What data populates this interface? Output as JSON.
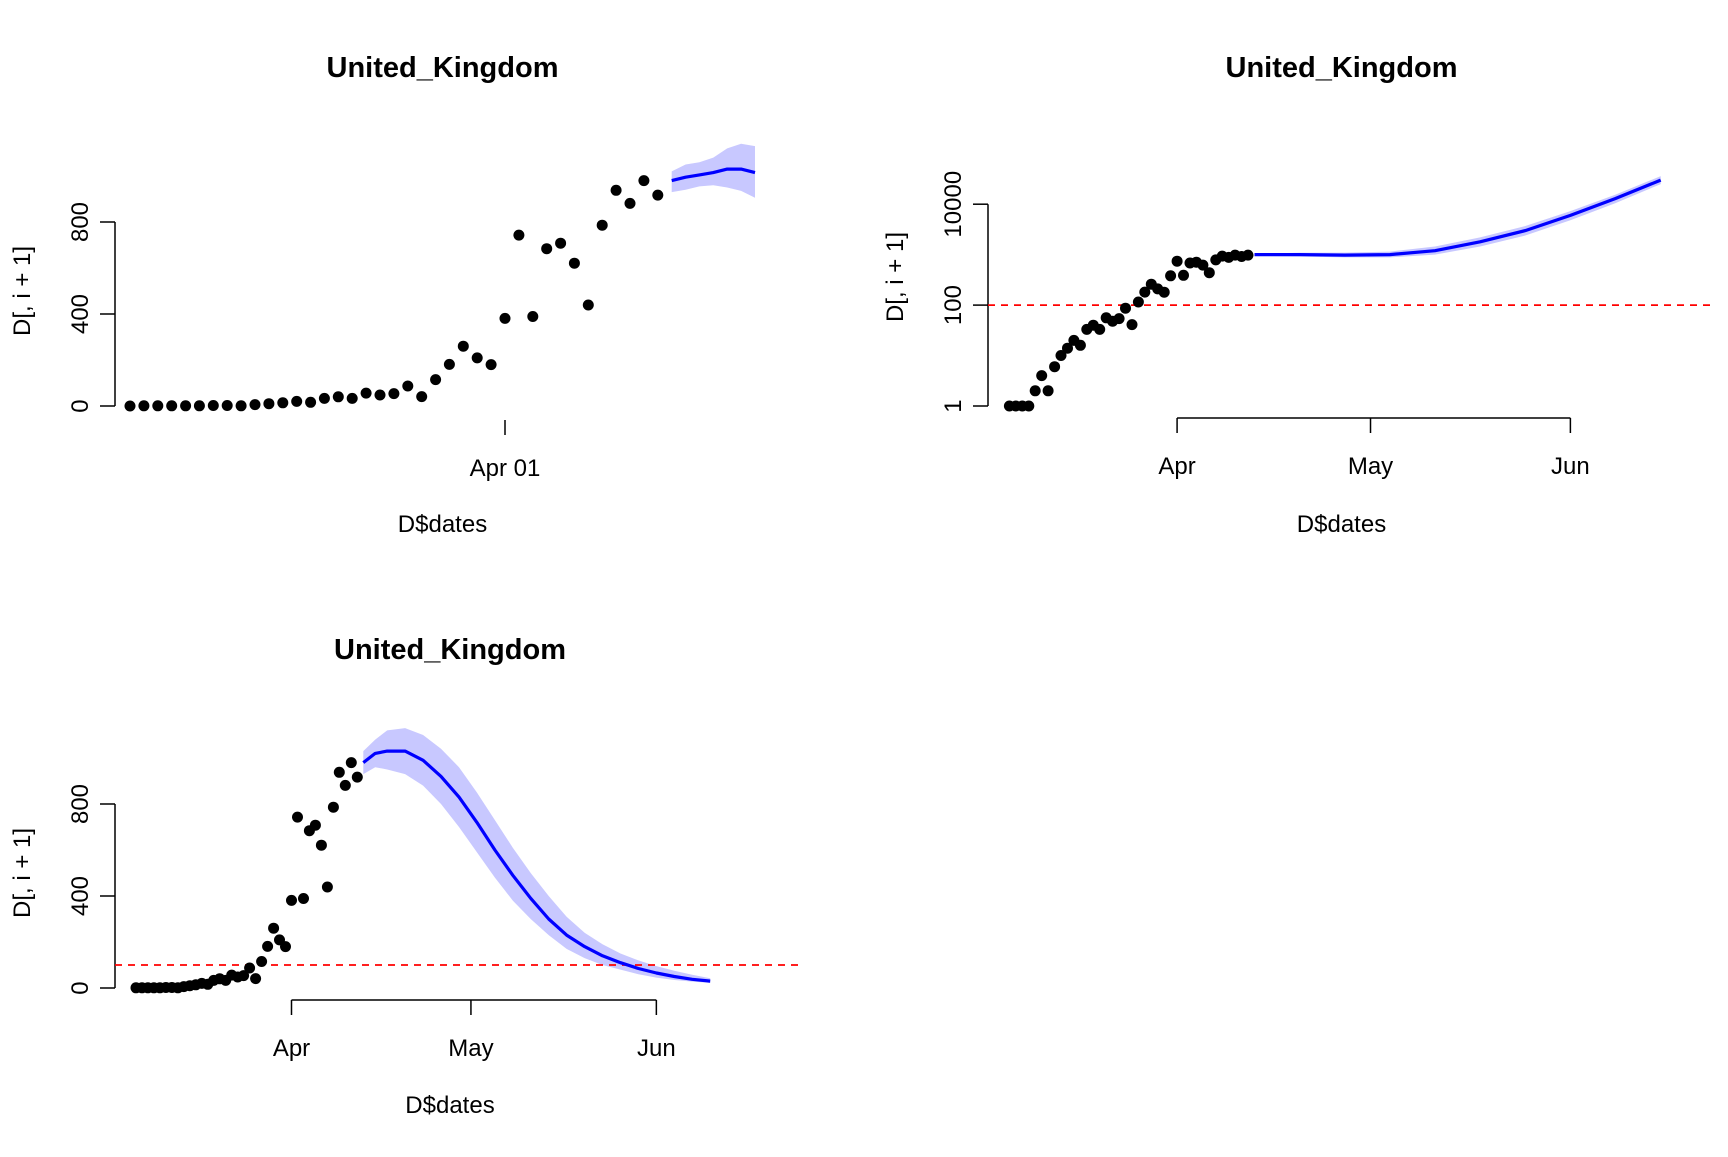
{
  "colors": {
    "points": "#000000",
    "fit": "#0000ff",
    "band": "#c8c8ff",
    "threshold": "#ff0000"
  },
  "chart_data": [
    {
      "id": "p1",
      "type": "scatter",
      "title": "United_Kingdom",
      "xlabel": "D$dates",
      "ylabel": "D[, i + 1]",
      "yscale": "linear",
      "xlim": [
        "2020-03-05",
        "2020-04-19"
      ],
      "ylim": [
        0,
        1000
      ],
      "xticks": [
        {
          "date": "2020-04-01",
          "label": "Apr 01"
        }
      ],
      "yticks": [
        {
          "value": 0,
          "label": "0"
        },
        {
          "value": 400,
          "label": "400"
        },
        {
          "value": 800,
          "label": "800"
        }
      ],
      "threshold": null,
      "series": [
        {
          "kind": "observed",
          "x": [
            "2020-03-05",
            "2020-03-06",
            "2020-03-07",
            "2020-03-08",
            "2020-03-09",
            "2020-03-10",
            "2020-03-11",
            "2020-03-12",
            "2020-03-13",
            "2020-03-14",
            "2020-03-15",
            "2020-03-16",
            "2020-03-17",
            "2020-03-18",
            "2020-03-19",
            "2020-03-20",
            "2020-03-21",
            "2020-03-22",
            "2020-03-23",
            "2020-03-24",
            "2020-03-25",
            "2020-03-26",
            "2020-03-27",
            "2020-03-28",
            "2020-03-29",
            "2020-03-30",
            "2020-03-31",
            "2020-04-01",
            "2020-04-02",
            "2020-04-03",
            "2020-04-04",
            "2020-04-05",
            "2020-04-06",
            "2020-04-07",
            "2020-04-08",
            "2020-04-09",
            "2020-04-10",
            "2020-04-11",
            "2020-04-12"
          ],
          "y": [
            0,
            1,
            1,
            1,
            1,
            1,
            2,
            2,
            1,
            6,
            10,
            14,
            20,
            16,
            33,
            40,
            33,
            56,
            48,
            54,
            87,
            41,
            115,
            181,
            260,
            209,
            180,
            381,
            743,
            389,
            684,
            708,
            621,
            439,
            786,
            938,
            881,
            980,
            917
          ]
        },
        {
          "kind": "fit",
          "x": [
            "2020-04-13",
            "2020-04-14",
            "2020-04-15",
            "2020-04-16",
            "2020-04-17",
            "2020-04-18",
            "2020-04-19"
          ],
          "y": [
            980,
            995,
            1005,
            1015,
            1030,
            1030,
            1015
          ]
        },
        {
          "kind": "band",
          "x": [
            "2020-04-13",
            "2020-04-14",
            "2020-04-15",
            "2020-04-16",
            "2020-04-17",
            "2020-04-18",
            "2020-04-19"
          ],
          "lower": [
            930,
            940,
            955,
            960,
            950,
            935,
            905
          ],
          "upper": [
            1020,
            1050,
            1060,
            1080,
            1120,
            1140,
            1130
          ]
        }
      ]
    },
    {
      "id": "p2",
      "type": "scatter",
      "title": "United_Kingdom",
      "xlabel": "D$dates",
      "ylabel": "D[, i + 1]",
      "yscale": "log",
      "xlim": [
        "2020-03-05",
        "2020-06-18"
      ],
      "ylim": [
        1,
        130000
      ],
      "xticks": [
        {
          "date": "2020-04-01",
          "label": "Apr"
        },
        {
          "date": "2020-05-01",
          "label": "May"
        },
        {
          "date": "2020-06-01",
          "label": "Jun"
        }
      ],
      "yticks": [
        {
          "value": 1,
          "label": "1"
        },
        {
          "value": 100,
          "label": "100"
        },
        {
          "value": 10000,
          "label": "10000"
        }
      ],
      "threshold": 100,
      "series": [
        {
          "kind": "observed",
          "x": [
            "2020-03-06",
            "2020-03-07",
            "2020-03-08",
            "2020-03-09",
            "2020-03-10",
            "2020-03-11",
            "2020-03-12",
            "2020-03-13",
            "2020-03-14",
            "2020-03-15",
            "2020-03-16",
            "2020-03-17",
            "2020-03-18",
            "2020-03-19",
            "2020-03-20",
            "2020-03-21",
            "2020-03-22",
            "2020-03-23",
            "2020-03-24",
            "2020-03-25",
            "2020-03-26",
            "2020-03-27",
            "2020-03-28",
            "2020-03-29",
            "2020-03-30",
            "2020-03-31",
            "2020-04-01",
            "2020-04-02",
            "2020-04-03",
            "2020-04-04",
            "2020-04-05",
            "2020-04-06",
            "2020-04-07",
            "2020-04-08",
            "2020-04-09",
            "2020-04-10",
            "2020-04-11",
            "2020-04-12"
          ],
          "y": [
            1,
            1,
            1,
            1,
            2,
            4,
            2,
            6,
            10,
            14,
            20,
            16,
            33,
            40,
            33,
            56,
            48,
            54,
            87,
            41,
            115,
            181,
            260,
            209,
            180,
            381,
            743,
            389,
            684,
            708,
            621,
            439,
            786,
            938,
            881,
            980,
            917,
            980
          ]
        },
        {
          "kind": "fit",
          "x": [
            "2020-04-13",
            "2020-04-20",
            "2020-04-27",
            "2020-05-04",
            "2020-05-11",
            "2020-05-18",
            "2020-05-25",
            "2020-06-01",
            "2020-06-08",
            "2020-06-15"
          ],
          "y": [
            1000,
            1000,
            980,
            1000,
            1200,
            1800,
            3000,
            6000,
            13000,
            30000
          ]
        },
        {
          "kind": "band",
          "x": [
            "2020-04-13",
            "2020-04-20",
            "2020-04-27",
            "2020-05-04",
            "2020-05-11",
            "2020-05-18",
            "2020-05-25",
            "2020-06-01",
            "2020-06-08",
            "2020-06-15"
          ],
          "lower": [
            950,
            920,
            880,
            880,
            1000,
            1450,
            2400,
            4800,
            10500,
            25000
          ],
          "upper": [
            1050,
            1090,
            1100,
            1150,
            1450,
            2200,
            3700,
            7300,
            15500,
            36000
          ]
        }
      ]
    },
    {
      "id": "p3",
      "type": "scatter",
      "title": "United_Kingdom",
      "xlabel": "D$dates",
      "ylabel": "D[, i + 1]",
      "yscale": "linear",
      "xlim": [
        "2020-03-05",
        "2020-06-20"
      ],
      "ylim": [
        0,
        1000
      ],
      "xticks": [
        {
          "date": "2020-04-01",
          "label": "Apr"
        },
        {
          "date": "2020-05-01",
          "label": "May"
        },
        {
          "date": "2020-06-01",
          "label": "Jun"
        }
      ],
      "yticks": [
        {
          "value": 0,
          "label": "0"
        },
        {
          "value": 400,
          "label": "400"
        },
        {
          "value": 800,
          "label": "800"
        }
      ],
      "threshold": 100,
      "series": [
        {
          "kind": "observed",
          "x": [
            "2020-03-06",
            "2020-03-07",
            "2020-03-08",
            "2020-03-09",
            "2020-03-10",
            "2020-03-11",
            "2020-03-12",
            "2020-03-13",
            "2020-03-14",
            "2020-03-15",
            "2020-03-16",
            "2020-03-17",
            "2020-03-18",
            "2020-03-19",
            "2020-03-20",
            "2020-03-21",
            "2020-03-22",
            "2020-03-23",
            "2020-03-24",
            "2020-03-25",
            "2020-03-26",
            "2020-03-27",
            "2020-03-28",
            "2020-03-29",
            "2020-03-30",
            "2020-03-31",
            "2020-04-01",
            "2020-04-02",
            "2020-04-03",
            "2020-04-04",
            "2020-04-05",
            "2020-04-06",
            "2020-04-07",
            "2020-04-08",
            "2020-04-09",
            "2020-04-10",
            "2020-04-11",
            "2020-04-12"
          ],
          "y": [
            1,
            1,
            1,
            1,
            1,
            2,
            2,
            1,
            6,
            10,
            14,
            20,
            16,
            33,
            40,
            33,
            56,
            48,
            54,
            87,
            41,
            115,
            181,
            260,
            209,
            180,
            381,
            743,
            389,
            684,
            708,
            621,
            439,
            786,
            938,
            881,
            980,
            917
          ]
        },
        {
          "kind": "fit",
          "x": [
            "2020-04-13",
            "2020-04-15",
            "2020-04-17",
            "2020-04-20",
            "2020-04-23",
            "2020-04-26",
            "2020-04-29",
            "2020-05-02",
            "2020-05-05",
            "2020-05-08",
            "2020-05-11",
            "2020-05-14",
            "2020-05-17",
            "2020-05-20",
            "2020-05-23",
            "2020-05-26",
            "2020-05-29",
            "2020-06-01",
            "2020-06-04",
            "2020-06-07",
            "2020-06-10"
          ],
          "y": [
            980,
            1020,
            1030,
            1030,
            990,
            920,
            830,
            720,
            600,
            490,
            390,
            300,
            230,
            180,
            140,
            110,
            85,
            65,
            50,
            38,
            30
          ]
        },
        {
          "kind": "band",
          "x": [
            "2020-04-13",
            "2020-04-15",
            "2020-04-17",
            "2020-04-20",
            "2020-04-23",
            "2020-04-26",
            "2020-04-29",
            "2020-05-02",
            "2020-05-05",
            "2020-05-08",
            "2020-05-11",
            "2020-05-14",
            "2020-05-17",
            "2020-05-20",
            "2020-05-23",
            "2020-05-26",
            "2020-05-29",
            "2020-06-01",
            "2020-06-04",
            "2020-06-07",
            "2020-06-10"
          ],
          "lower": [
            930,
            960,
            950,
            930,
            880,
            800,
            700,
            590,
            480,
            380,
            300,
            230,
            170,
            130,
            100,
            80,
            60,
            45,
            35,
            28,
            22
          ],
          "upper": [
            1030,
            1080,
            1120,
            1130,
            1100,
            1040,
            960,
            850,
            730,
            610,
            500,
            400,
            310,
            240,
            190,
            150,
            120,
            95,
            75,
            58,
            42
          ]
        }
      ]
    }
  ]
}
